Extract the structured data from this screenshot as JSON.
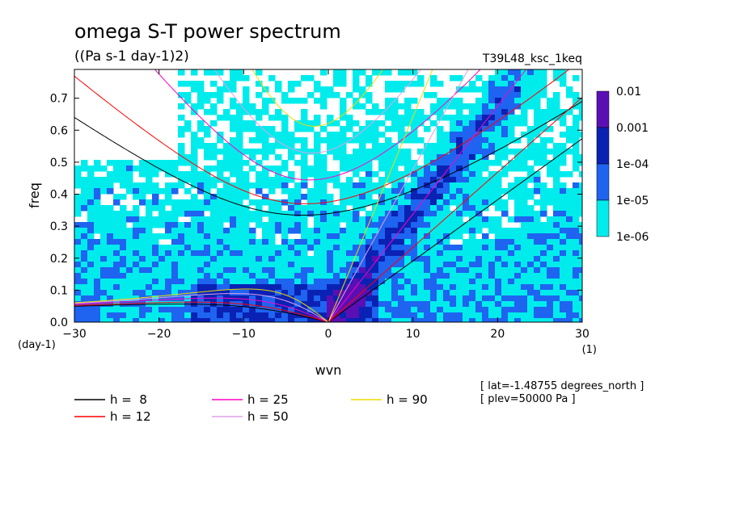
{
  "chart_data": {
    "type": "heatmap",
    "title": "omega S-T power spectrum",
    "subtitle": "((Pa s-1 day-1)2)",
    "run_label": "T39L48_ksc_1keq",
    "xlabel": "wvn",
    "x_unit": "(1)",
    "ylabel": "freq",
    "y_unit": "(day-1)",
    "xlim": [
      -30,
      30
    ],
    "ylim": [
      0,
      0.79
    ],
    "x_ticks": [
      -30,
      -20,
      -10,
      0,
      10,
      20,
      30
    ],
    "x_tick_labels": [
      "−30",
      "−20",
      "−10",
      "0",
      "10",
      "20",
      "30"
    ],
    "y_ticks": [
      0.0,
      0.1,
      0.2,
      0.3,
      0.4,
      0.5,
      0.6,
      0.7
    ],
    "y_tick_labels": [
      "0.0",
      "0.1",
      "0.2",
      "0.3",
      "0.4",
      "0.5",
      "0.6",
      "0.7"
    ],
    "colorbar": {
      "labels": [
        "0.01",
        "0.001",
        "1e-04",
        "1e-05",
        "1e-06"
      ],
      "colors": [
        "#5a0fb4",
        "#0a22b4",
        "#1e64f0",
        "#00ecec"
      ]
    },
    "dispersion_curves": [
      {
        "name": "h =  8",
        "h": 8,
        "color": "#000000"
      },
      {
        "name": "h = 12",
        "h": 12,
        "color": "#ff0000"
      },
      {
        "name": "h = 25",
        "h": 25,
        "color": "#ff00c8"
      },
      {
        "name": "h = 50",
        "h": 50,
        "color": "#e0a0ec"
      },
      {
        "name": "h = 90",
        "h": 90,
        "color": "#f0dc00"
      }
    ],
    "annotations": [
      "[ lat=-1.48755 degrees_north ]",
      "[ plev=50000 Pa ]"
    ]
  }
}
